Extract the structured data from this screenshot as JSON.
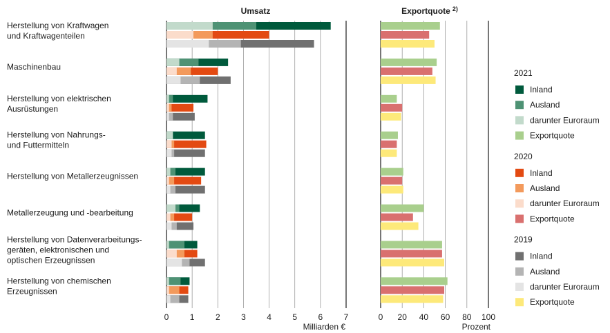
{
  "chart_data": {
    "type": "bar",
    "subtype": "horizontal-stacked-grouped",
    "categories": [
      [
        "Herstellung von Kraftwagen",
        "und Kraftwagenteilen"
      ],
      [
        "Maschinenbau"
      ],
      [
        "Herstellung von elektrischen",
        "Ausrüstungen"
      ],
      [
        "Herstellung von Nahrungs-",
        "und Futtermitteln"
      ],
      [
        "Herstellung von Metallerzeugnissen"
      ],
      [
        "Metallerzeugung und -bearbeitung"
      ],
      [
        "Herstellung von Datenverarbeitungs-",
        "geräten, elektronischen und",
        "optischen Erzeugnissen"
      ],
      [
        "Herstellung von chemischen",
        "Erzeugnissen"
      ]
    ],
    "umsatz": {
      "title": "Umsatz",
      "xlabel": "Milliarden €",
      "xlim": [
        0,
        7
      ],
      "ticks": [
        "0",
        "1",
        "2",
        "3",
        "4",
        "5",
        "6",
        "7"
      ],
      "years": [
        {
          "year": "2021",
          "euroraum": [
            1.8,
            0.5,
            0.1,
            0.25,
            0.15,
            0.35,
            0.1,
            0.1
          ],
          "ausland": [
            3.5,
            1.25,
            0.25,
            0.25,
            0.35,
            0.5,
            0.7,
            0.55
          ],
          "inland": [
            6.4,
            2.4,
            1.6,
            1.5,
            1.5,
            1.3,
            1.2,
            0.9
          ]
        },
        {
          "year": "2020",
          "euroraum": [
            1.05,
            0.4,
            0.1,
            0.2,
            0.1,
            0.15,
            0.4,
            0.1
          ],
          "ausland": [
            1.8,
            0.95,
            0.2,
            0.3,
            0.3,
            0.3,
            0.7,
            0.5
          ],
          "inland": [
            4.0,
            2.0,
            1.05,
            1.55,
            1.35,
            1.0,
            1.2,
            0.85
          ]
        },
        {
          "year": "2019",
          "euroraum": [
            1.65,
            0.55,
            0.1,
            0.2,
            0.15,
            0.2,
            0.6,
            0.15
          ],
          "ausland": [
            2.9,
            1.3,
            0.25,
            0.3,
            0.35,
            0.4,
            0.9,
            0.5
          ],
          "inland": [
            5.75,
            2.5,
            1.1,
            1.5,
            1.5,
            1.05,
            1.5,
            0.85
          ]
        }
      ]
    },
    "exportquote": {
      "title": "Exportquote",
      "footnote": "2)",
      "xlabel": "Prozent",
      "xlim": [
        0,
        100
      ],
      "ticks": [
        "0",
        "20",
        "40",
        "60",
        "80",
        "100"
      ],
      "series": [
        {
          "year": "2021",
          "values": [
            55,
            52,
            15,
            16,
            21,
            40,
            57,
            62
          ]
        },
        {
          "year": "2020",
          "values": [
            45,
            48,
            20,
            15,
            20,
            30,
            57,
            59
          ]
        },
        {
          "year": "2019",
          "values": [
            50,
            51,
            19,
            15,
            21,
            35,
            59,
            58
          ]
        }
      ]
    },
    "legend": {
      "placement": "right",
      "groups": [
        {
          "year": "2021",
          "items": [
            "Inland",
            "Ausland",
            "darunter Euroraum",
            "Exportquote"
          ]
        },
        {
          "year": "2020",
          "items": [
            "Inland",
            "Ausland",
            "darunter Euroraum",
            "Exportquote"
          ]
        },
        {
          "year": "2019",
          "items": [
            "Inland",
            "Ausland",
            "darunter Euroraum",
            "Exportquote"
          ]
        }
      ]
    },
    "colors": {
      "2021": {
        "inland": "#005a3c",
        "ausland": "#4e9274",
        "euroraum": "#c2dacb",
        "exportquote": "#a9cf8d"
      },
      "2020": {
        "inland": "#e34a12",
        "ausland": "#f39a5c",
        "euroraum": "#fbdccb",
        "exportquote": "#d9706f"
      },
      "2019": {
        "inland": "#707070",
        "ausland": "#b4b4b4",
        "euroraum": "#e4e4e4",
        "exportquote": "#fde97a"
      }
    },
    "grid": true
  }
}
